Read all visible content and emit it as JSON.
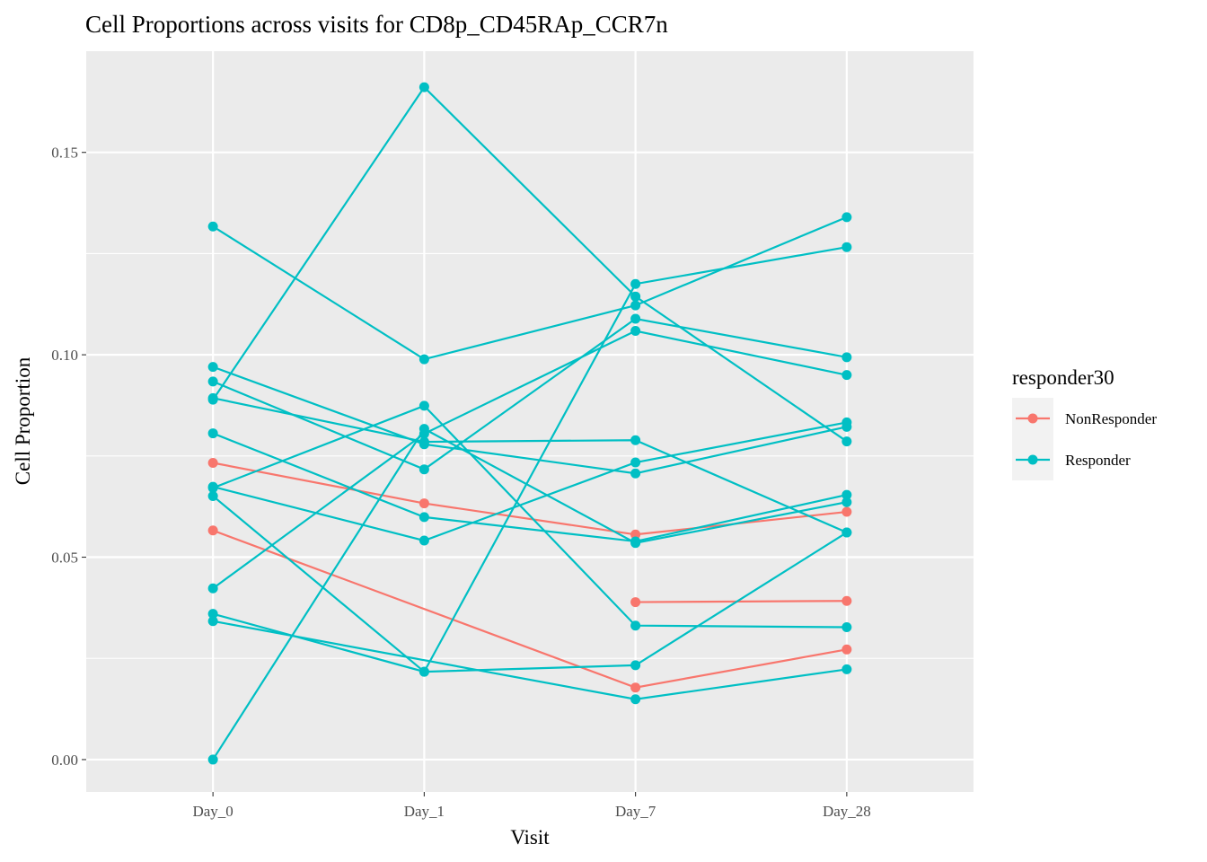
{
  "chart_data": {
    "type": "line",
    "title": "Cell Proportions across visits for CD8p_CD45RAp_CCR7n",
    "xlabel": "Visit",
    "ylabel": "Cell Proportion",
    "categories": [
      "Day_0",
      "Day_1",
      "Day_7",
      "Day_28"
    ],
    "ylim": [
      -0.008,
      0.175
    ],
    "y_ticks": [
      0.0,
      0.05,
      0.1,
      0.15
    ],
    "y_tick_labels": [
      "0.00",
      "0.05",
      "0.10",
      "0.15"
    ],
    "y_minor_ticks": [
      0.025,
      0.075,
      0.125
    ],
    "grid": true,
    "legend": {
      "title": "responder30",
      "position": "right",
      "entries": [
        {
          "label": "NonResponder",
          "color": "#F8766D"
        },
        {
          "label": "Responder",
          "color": "#00BFC4"
        }
      ]
    },
    "series": [
      {
        "group": "NonResponder",
        "values": [
          0.0733,
          0.0633,
          0.0556,
          0.0612
        ]
      },
      {
        "group": "NonResponder",
        "values": [
          0.0566,
          null,
          0.0178,
          0.0272
        ]
      },
      {
        "group": "NonResponder",
        "values": [
          null,
          null,
          0.0389,
          0.0392
        ]
      },
      {
        "group": "Responder",
        "values": [
          0.1317,
          0.0989,
          0.1122,
          0.134
        ]
      },
      {
        "group": "Responder",
        "values": [
          0.0889,
          0.1661,
          0.1144,
          0.0786
        ]
      },
      {
        "group": "Responder",
        "values": [
          0.097,
          0.0779,
          0.0707,
          0.0822
        ]
      },
      {
        "group": "Responder",
        "values": [
          0.0934,
          0.0717,
          0.1089,
          0.0994
        ]
      },
      {
        "group": "Responder",
        "values": [
          0.0893,
          0.0785,
          0.0789,
          0.0561
        ]
      },
      {
        "group": "Responder",
        "values": [
          0.0806,
          0.0599,
          0.0539,
          0.0654
        ]
      },
      {
        "group": "Responder",
        "values": [
          0.0674,
          0.0541,
          0.0734,
          0.0833
        ]
      },
      {
        "group": "Responder",
        "values": [
          0.0671,
          0.0874,
          0.0331,
          0.0327
        ]
      },
      {
        "group": "Responder",
        "values": [
          0.0651,
          0.0217,
          0.1175,
          0.1266
        ]
      },
      {
        "group": "Responder",
        "values": [
          0.0423,
          0.0805,
          0.1059,
          0.095
        ]
      },
      {
        "group": "Responder",
        "values": [
          0.036,
          0.0217,
          0.0233,
          0.0561
        ]
      },
      {
        "group": "Responder",
        "values": [
          0.0342,
          null,
          0.0149,
          0.0223
        ]
      },
      {
        "group": "Responder",
        "values": [
          0.0,
          0.0817,
          0.0535,
          0.0636
        ]
      }
    ]
  }
}
